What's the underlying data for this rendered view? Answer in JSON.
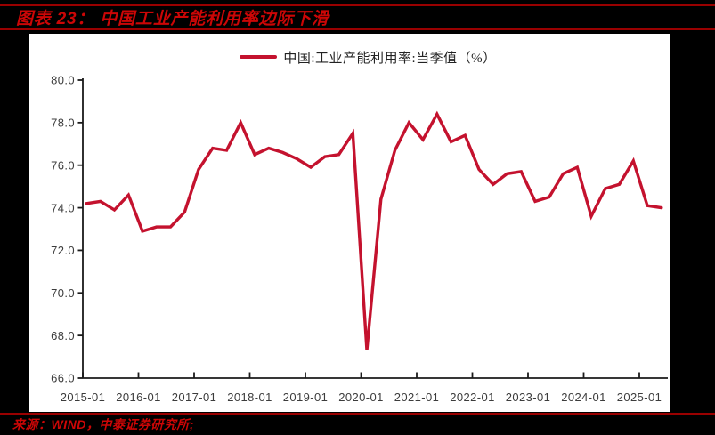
{
  "header": {
    "title": "图表 23： 中国工业产能利用率边际下滑"
  },
  "legend": {
    "label": "中国:工业产能利用率:当季值（%）"
  },
  "footer": {
    "source": "来源：WIND，中泰证券研究所;"
  },
  "colors": {
    "canvas_bg": "#000000",
    "panel_bg": "#FFFFFF",
    "rule_red": "#9A0000",
    "title_red": "#CC0606",
    "line": "#C4122E",
    "axis": "#1A1A1A",
    "tick_text": "#3C3C3C"
  },
  "chart_data": {
    "type": "line",
    "title": "中国工业产能利用率边际下滑",
    "legend_position": "top-center",
    "grid": false,
    "unit": "%",
    "ylim": [
      66.0,
      80.0
    ],
    "y_ticks": [
      "80.0",
      "78.0",
      "76.0",
      "74.0",
      "72.0",
      "70.0",
      "68.0",
      "66.0"
    ],
    "x_tick_labels": [
      "2015-01",
      "2016-01",
      "2017-01",
      "2018-01",
      "2019-01",
      "2020-01",
      "2021-01",
      "2022-01",
      "2023-01",
      "2024-01",
      "2025-01"
    ],
    "x_quarters": [
      "2015Q1",
      "2015Q2",
      "2015Q3",
      "2015Q4",
      "2016Q1",
      "2016Q2",
      "2016Q3",
      "2016Q4",
      "2017Q1",
      "2017Q2",
      "2017Q3",
      "2017Q4",
      "2018Q1",
      "2018Q2",
      "2018Q3",
      "2018Q4",
      "2019Q1",
      "2019Q2",
      "2019Q3",
      "2019Q4",
      "2020Q1",
      "2020Q2",
      "2020Q3",
      "2020Q4",
      "2021Q1",
      "2021Q2",
      "2021Q3",
      "2021Q4",
      "2022Q1",
      "2022Q2",
      "2022Q3",
      "2022Q4",
      "2023Q1",
      "2023Q2",
      "2023Q3",
      "2023Q4",
      "2024Q1",
      "2024Q2",
      "2024Q3",
      "2024Q4",
      "2025Q1",
      "2025Q2"
    ],
    "series": [
      {
        "name": "中国:工业产能利用率:当季值（%）",
        "values": [
          74.2,
          74.3,
          73.9,
          74.6,
          72.9,
          73.1,
          73.1,
          73.8,
          75.8,
          76.8,
          76.7,
          78.0,
          76.5,
          76.8,
          76.6,
          76.3,
          75.9,
          76.4,
          76.5,
          77.5,
          67.3,
          74.4,
          76.7,
          78.0,
          77.2,
          78.4,
          77.1,
          77.4,
          75.8,
          75.1,
          75.6,
          75.7,
          74.3,
          74.5,
          75.6,
          75.9,
          73.6,
          74.9,
          75.1,
          76.2,
          74.1,
          74.0
        ]
      }
    ]
  }
}
